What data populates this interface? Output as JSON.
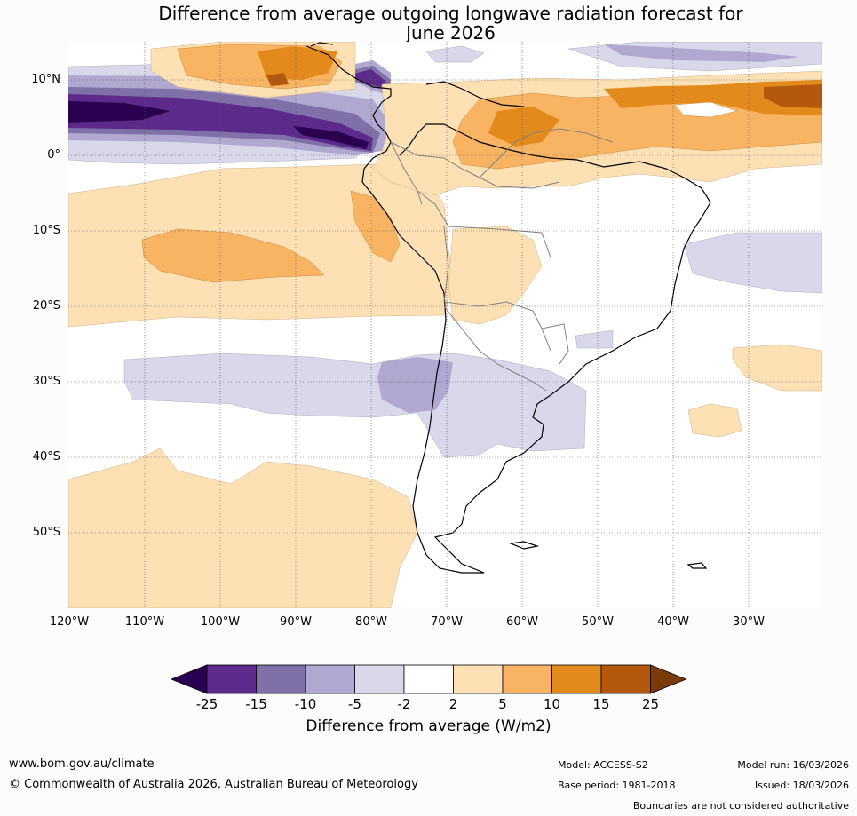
{
  "title_line1": "Difference from average outgoing longwave radiation forecast for",
  "title_line2": "June 2026",
  "lat_labels": [
    "10°N",
    "0°",
    "10°S",
    "20°S",
    "30°S",
    "40°S",
    "50°S"
  ],
  "lon_labels": [
    "120°W",
    "110°W",
    "100°W",
    "90°W",
    "80°W",
    "70°W",
    "60°W",
    "50°W",
    "40°W",
    "30°W"
  ],
  "colorbar": {
    "ticks": [
      "-25",
      "-15",
      "-10",
      "-5",
      "-2",
      "2",
      "5",
      "10",
      "15",
      "25"
    ],
    "colors": [
      "#2a0050",
      "#5b2a8a",
      "#8070a8",
      "#b0a8d0",
      "#d8d8ea",
      "#ffffff",
      "#fde0b4",
      "#f9b463",
      "#e38a1d",
      "#b4580e",
      "#7a3a0a"
    ],
    "title": "Difference from average (W/m2)"
  },
  "footer": {
    "url": "www.bom.gov.au/climate",
    "copyright": "© Commonwealth of Australia 2026, Australian Bureau of Meteorology",
    "model": "Model: ACCESS-S2",
    "base_period": "Base period: 1981-2018",
    "model_run": "Model run: 16/03/2026",
    "issued": "Issued: 18/03/2026",
    "disclaimer": "Boundaries are not considered authoritative"
  }
}
